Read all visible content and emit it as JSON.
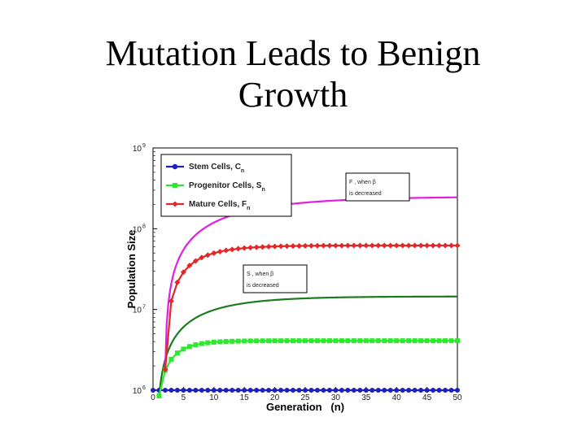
{
  "slide": {
    "title_line1": "Mutation Leads to Benign",
    "title_line2": "Growth"
  },
  "chart_data": {
    "type": "line",
    "title": "",
    "xlabel": "Generation   (n)",
    "ylabel": "Population Size",
    "xlim": [
      0,
      50
    ],
    "ylim_log10": [
      6,
      9
    ],
    "y_scale": "log",
    "x_ticks": [
      "0",
      "5",
      "10",
      "15",
      "20",
      "25",
      "30",
      "35",
      "40",
      "45",
      "50"
    ],
    "y_ticks": [
      {
        "base": "10",
        "exp": "6"
      },
      {
        "base": "10",
        "exp": "7"
      },
      {
        "base": "10",
        "exp": "8"
      },
      {
        "base": "10",
        "exp": "9"
      }
    ],
    "grid": false,
    "legend_position": "top-left",
    "legend": [
      {
        "name": "Stem Cells, C",
        "sub": "n",
        "color": "#1f1fbf"
      },
      {
        "name": "Progenitor Cells, S",
        "sub": "n",
        "color": "#2ee82e"
      },
      {
        "name": "Mature Cells, F",
        "sub": "n",
        "color": "#e32626"
      }
    ],
    "annotations": [
      {
        "line1": "F , when β",
        "line2": "is decreased"
      },
      {
        "line1": "S , when β",
        "line2": "is decreased"
      }
    ],
    "series": [
      {
        "name": "Stem Cells, C",
        "color": "#1f1fbf",
        "marker": "circle",
        "x0": 0,
        "x1": 50,
        "start": 1000000,
        "asymptote": 1000000,
        "rate": 0.2
      },
      {
        "name": "Progenitor Cells, S",
        "color": "#2ee82e",
        "marker": "square",
        "x0": 1,
        "x1": 50,
        "start": 850000,
        "asymptote": 4100000,
        "rate": 0.33
      },
      {
        "name": "Mature Cells, F",
        "color": "#e32626",
        "marker": "diamond",
        "x0": 2,
        "x1": 50,
        "start": 1800000,
        "asymptote": 62000000,
        "rate": 0.2
      },
      {
        "name": "",
        "color": "#1e7a1e",
        "marker": "none",
        "x0": 1,
        "x1": 50,
        "start": 850000,
        "asymptote": 14500000,
        "rate": 0.12
      },
      {
        "name": "",
        "color": "#e020e0",
        "marker": "none",
        "x0": 2,
        "x1": 50,
        "start": 1800000,
        "asymptote": 250000000,
        "rate": 0.08
      }
    ]
  }
}
